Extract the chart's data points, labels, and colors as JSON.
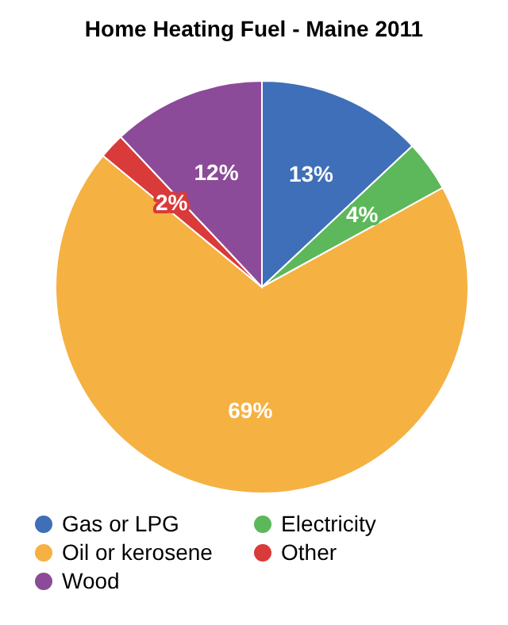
{
  "chart_data": {
    "type": "pie",
    "title": "Home Heating Fuel - Maine 2011",
    "categories": [
      "Gas or LPG",
      "Electricity",
      "Oil or kerosene",
      "Other",
      "Wood"
    ],
    "values": [
      13,
      4,
      69,
      2,
      12
    ],
    "value_labels": [
      "13%",
      "4%",
      "69%",
      "2%",
      "12%"
    ],
    "colors": [
      "#3f6fb8",
      "#5cb85a",
      "#f5b142",
      "#d93a3a",
      "#8c4b98"
    ],
    "legend": "bottom"
  }
}
